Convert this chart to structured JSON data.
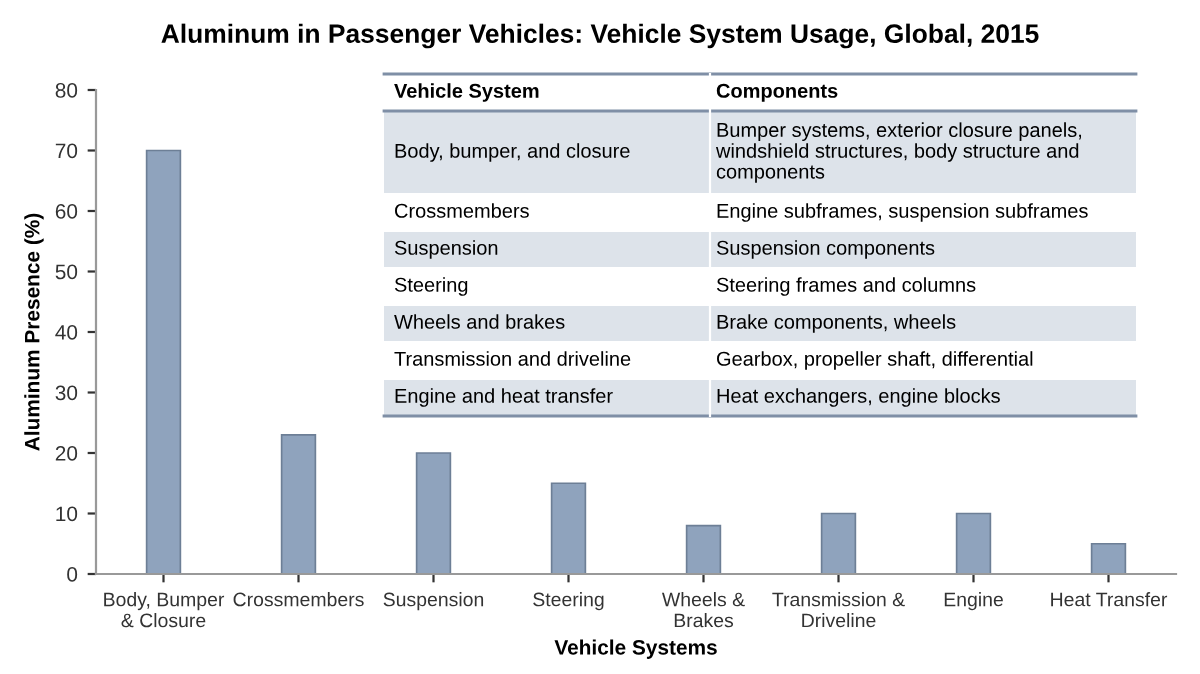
{
  "chart_data": {
    "type": "bar",
    "title": "Aluminum in Passenger Vehicles: Vehicle System Usage, Global, 2015",
    "xlabel": "Vehicle Systems",
    "ylabel": "Aluminum Presence (%)",
    "categories": [
      "Body, Bumper\n& Closure",
      "Crossmembers",
      "Suspension",
      "Steering",
      "Wheels &\nBrakes",
      "Transmission &\nDriveline",
      "Engine",
      "Heat Transfer"
    ],
    "values": [
      70,
      23,
      20,
      15,
      8,
      10,
      10,
      5
    ],
    "color": "#8fa3bd",
    "ylim": [
      0,
      80
    ],
    "yticks": [
      0,
      10,
      20,
      30,
      40,
      50,
      60,
      70,
      80
    ],
    "grid": false,
    "legend": false,
    "annotations": [
      "Vehicle System",
      "Components",
      "Body, bumper, and closure",
      "Bumper systems, exterior closure panels, windshield structures, body structure and components",
      "Crossmembers",
      "Engine subframes, suspension subframes",
      "Suspension",
      "Suspension components",
      "Steering",
      "Steering frames and columns",
      "Wheels and brakes",
      "Brake components, wheels",
      "Transmission and driveline",
      "Gearbox, propeller shaft, differential",
      "Engine and heat transfer",
      "Heat exchangers, engine blocks"
    ]
  }
}
